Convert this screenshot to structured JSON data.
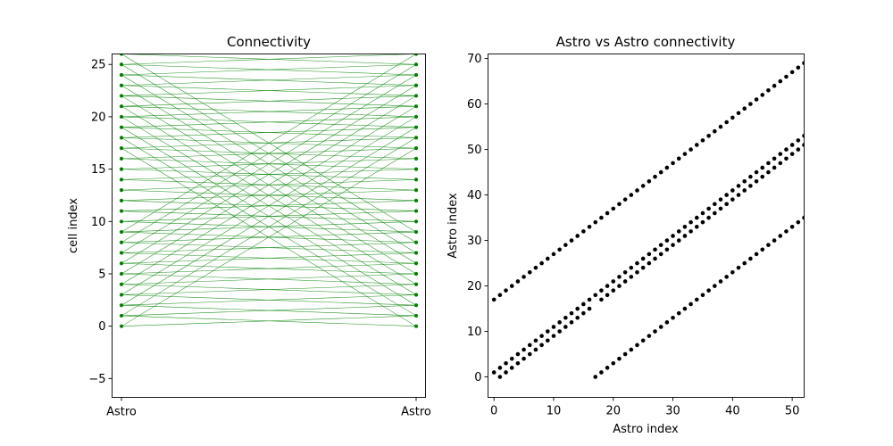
{
  "chart_data": [
    {
      "type": "line",
      "title": "Connectivity",
      "xlabel": "",
      "ylabel": "cell index",
      "x_categories": [
        "Astro",
        "Astro"
      ],
      "ylim": [
        -6.8,
        26
      ],
      "yticks": [
        -5,
        0,
        5,
        10,
        15,
        20,
        25
      ],
      "marker_color": "#008000",
      "line_color": "#008000",
      "nodes": [
        0,
        1,
        2,
        3,
        4,
        5,
        6,
        7,
        8,
        9,
        10,
        11,
        12,
        13,
        14,
        15,
        16,
        17,
        18,
        19,
        20,
        21,
        22,
        23,
        24,
        25,
        26
      ],
      "connections": [
        [
          0,
          1
        ],
        [
          0,
          17
        ],
        [
          1,
          0
        ],
        [
          1,
          2
        ],
        [
          2,
          1
        ],
        [
          2,
          3
        ],
        [
          3,
          2
        ],
        [
          3,
          4
        ],
        [
          4,
          3
        ],
        [
          4,
          5
        ],
        [
          5,
          4
        ],
        [
          5,
          6
        ],
        [
          6,
          5
        ],
        [
          6,
          7
        ],
        [
          7,
          6
        ],
        [
          7,
          8
        ],
        [
          8,
          7
        ],
        [
          8,
          9
        ],
        [
          9,
          8
        ],
        [
          9,
          10
        ],
        [
          10,
          9
        ],
        [
          10,
          11
        ],
        [
          11,
          10
        ],
        [
          11,
          12
        ],
        [
          12,
          11
        ],
        [
          12,
          13
        ],
        [
          13,
          12
        ],
        [
          13,
          14
        ],
        [
          14,
          13
        ],
        [
          14,
          15
        ],
        [
          15,
          14
        ],
        [
          15,
          16
        ],
        [
          16,
          15
        ],
        [
          16,
          17
        ],
        [
          17,
          16
        ],
        [
          17,
          18
        ],
        [
          17,
          0
        ],
        [
          18,
          17
        ],
        [
          18,
          19
        ],
        [
          19,
          18
        ],
        [
          19,
          20
        ],
        [
          20,
          19
        ],
        [
          20,
          21
        ],
        [
          21,
          20
        ],
        [
          21,
          22
        ],
        [
          22,
          21
        ],
        [
          22,
          23
        ],
        [
          23,
          22
        ],
        [
          23,
          24
        ],
        [
          24,
          23
        ],
        [
          24,
          25
        ],
        [
          25,
          24
        ],
        [
          25,
          26
        ],
        [
          26,
          25
        ],
        [
          1,
          18
        ],
        [
          2,
          19
        ],
        [
          3,
          20
        ],
        [
          4,
          21
        ],
        [
          5,
          22
        ],
        [
          6,
          23
        ],
        [
          7,
          24
        ],
        [
          8,
          25
        ],
        [
          9,
          26
        ],
        [
          18,
          1
        ],
        [
          19,
          2
        ],
        [
          20,
          3
        ],
        [
          21,
          4
        ],
        [
          22,
          5
        ],
        [
          23,
          6
        ],
        [
          24,
          7
        ],
        [
          25,
          8
        ],
        [
          26,
          9
        ]
      ]
    },
    {
      "type": "scatter",
      "title": "Astro vs Astro connectivity",
      "xlabel": "Astro index",
      "ylabel": "Astro index",
      "xlim": [
        -1,
        52
      ],
      "ylim": [
        -4.5,
        71
      ],
      "xticks": [
        0,
        10,
        20,
        30,
        40,
        50
      ],
      "yticks": [
        0,
        10,
        20,
        30,
        40,
        50,
        60,
        70
      ],
      "marker_color": "#000000",
      "bands": [
        {
          "name": "",
          "x_start": 0,
          "x_end": 52,
          "offset": 17
        },
        {
          "name": "",
          "x_start": 0,
          "x_end": 16,
          "offset": 1
        },
        {
          "name": "",
          "x_start": 1,
          "x_end": 16,
          "offset": -1
        },
        {
          "name": "",
          "x_start": 17,
          "x_end": 52,
          "offset": 1
        },
        {
          "name": "",
          "x_start": 18,
          "x_end": 52,
          "offset": -1
        },
        {
          "name": "",
          "x_start": 17,
          "x_end": 52,
          "offset": -17
        }
      ]
    }
  ]
}
